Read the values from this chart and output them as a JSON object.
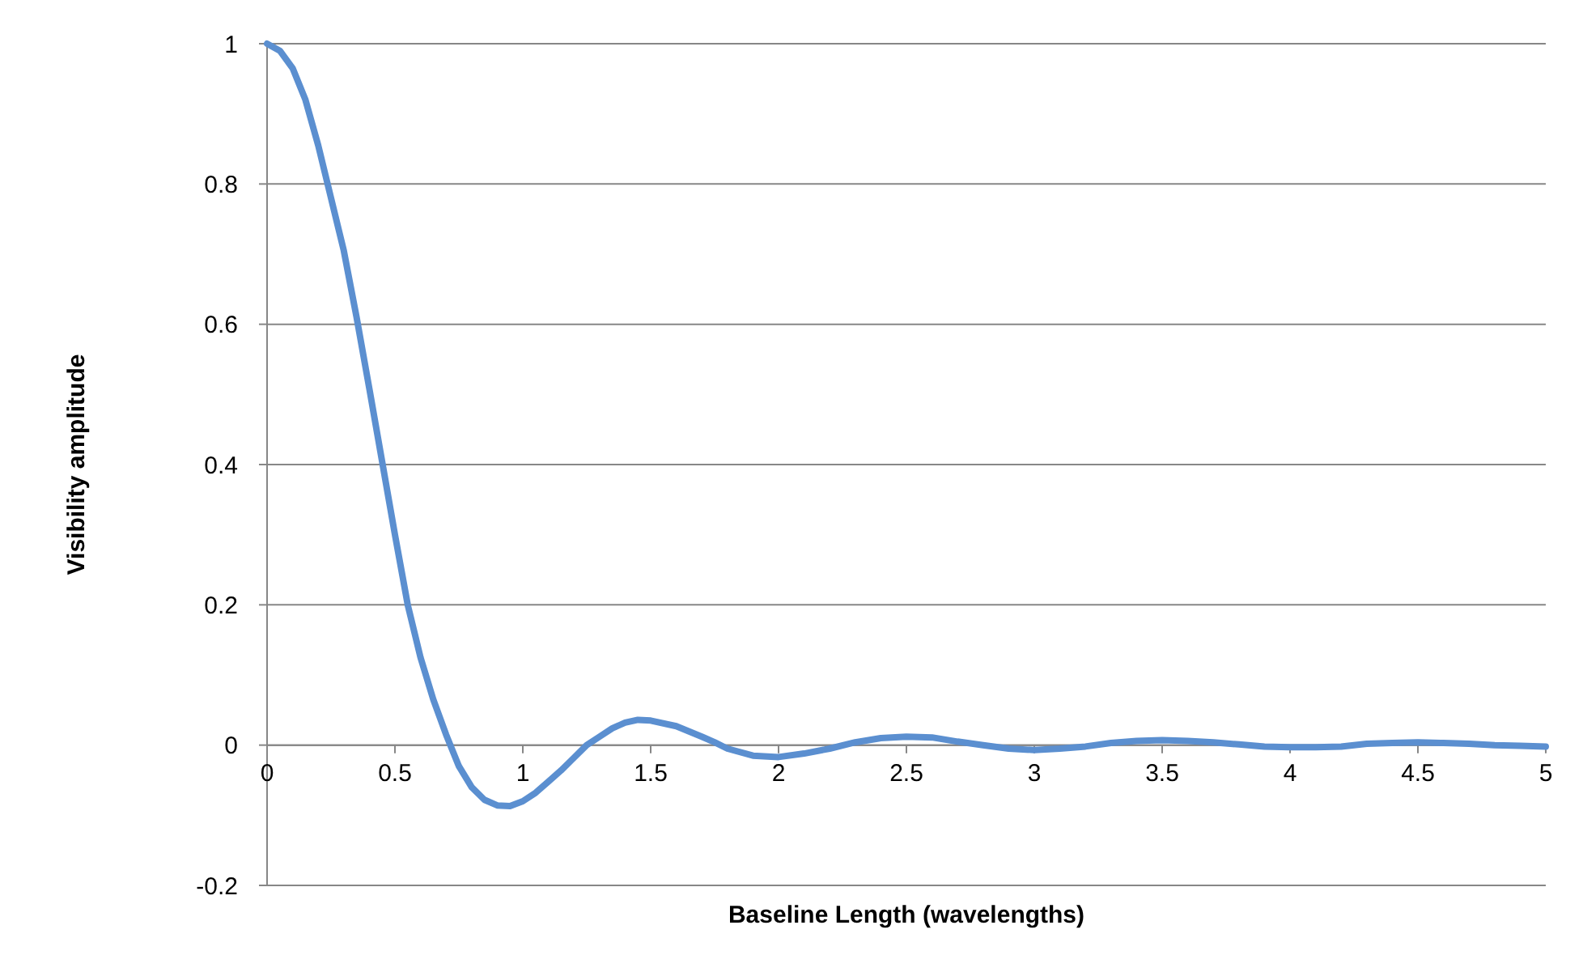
{
  "chart_data": {
    "type": "line",
    "xlabel": "Baseline Length (wavelengths)",
    "ylabel": "Visibility amplitude",
    "x": [
      0,
      0.05,
      0.1,
      0.15,
      0.2,
      0.25,
      0.3,
      0.35,
      0.4,
      0.45,
      0.5,
      0.55,
      0.6,
      0.65,
      0.7,
      0.75,
      0.8,
      0.85,
      0.9,
      0.95,
      1.0,
      1.05,
      1.1,
      1.15,
      1.2,
      1.25,
      1.3,
      1.35,
      1.4,
      1.45,
      1.5,
      1.6,
      1.7,
      1.75,
      1.8,
      1.9,
      2.0,
      2.1,
      2.2,
      2.3,
      2.4,
      2.5,
      2.6,
      2.7,
      2.8,
      2.9,
      3.0,
      3.1,
      3.2,
      3.3,
      3.4,
      3.5,
      3.6,
      3.7,
      3.8,
      3.9,
      4.0,
      4.1,
      4.2,
      4.3,
      4.4,
      4.5,
      4.6,
      4.7,
      4.8,
      4.9,
      5.0
    ],
    "series": [
      {
        "color": "#5b8fd0",
        "values": [
          1,
          0.99,
          0.965,
          0.92,
          0.855,
          0.78,
          0.705,
          0.61,
          0.508,
          0.404,
          0.3,
          0.2,
          0.125,
          0.065,
          0.015,
          -0.03,
          -0.06,
          -0.078,
          -0.086,
          -0.087,
          -0.08,
          -0.068,
          -0.052,
          -0.036,
          -0.018,
          0,
          0.012,
          0.024,
          0.032,
          0.036,
          0.035,
          0.027,
          0.012,
          0.004,
          -0.005,
          -0.015,
          -0.017,
          -0.012,
          -0.005,
          0.004,
          0.01,
          0.012,
          0.011,
          0.005,
          0,
          -0.005,
          -0.007,
          -0.005,
          -0.002,
          0.003,
          0.006,
          0.007,
          0.006,
          0.004,
          0.001,
          -0.002,
          -0.003,
          -0.003,
          -0.002,
          0.002,
          0.003,
          0.004,
          0.003,
          0.002,
          0,
          -0.001,
          -0.002
        ]
      }
    ],
    "xlim": [
      0,
      5
    ],
    "xticks": [
      0,
      0.5,
      1,
      1.5,
      2,
      2.5,
      3,
      3.5,
      4,
      4.5,
      5
    ],
    "ylim": [
      -0.2,
      1
    ],
    "yticks": [
      -0.2,
      0,
      0.2,
      0.4,
      0.6,
      0.8,
      1
    ],
    "grid": "y",
    "marker": "none",
    "line_style": "solid"
  }
}
